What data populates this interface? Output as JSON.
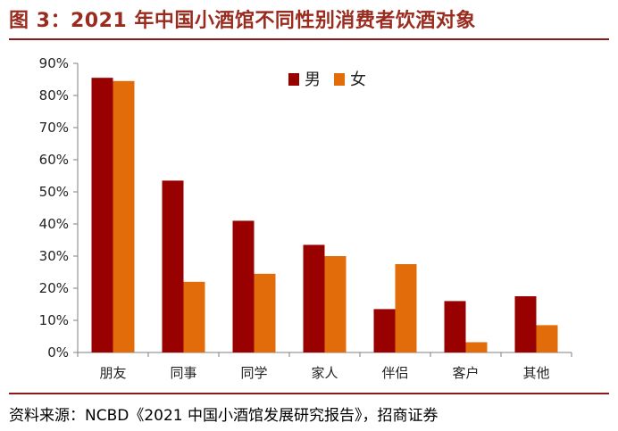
{
  "figure": {
    "title": "图 3：2021 年中国小酒馆不同性别消费者饮酒对象",
    "source": "资料来源：NCBD《2021 中国小酒馆发展研究报告》，招商证券"
  },
  "chart_data": {
    "type": "bar",
    "title": "2021 年中国小酒馆不同性别消费者饮酒对象",
    "xlabel": "",
    "ylabel": "",
    "categories": [
      "朋友",
      "同事",
      "同学",
      "家人",
      "伴侣",
      "客户",
      "其他"
    ],
    "series": [
      {
        "name": "男",
        "color": "#990000",
        "values": [
          85.5,
          53.5,
          41,
          33.5,
          13.5,
          16,
          17.5
        ]
      },
      {
        "name": "女",
        "color": "#e36c0a",
        "values": [
          84.5,
          22,
          24.5,
          30,
          27.5,
          3.2,
          8.5
        ]
      }
    ],
    "ylim": [
      0,
      90
    ],
    "yticks": [
      0,
      10,
      20,
      30,
      40,
      50,
      60,
      70,
      80,
      90
    ],
    "ytick_labels": [
      "0%",
      "10%",
      "20%",
      "30%",
      "40%",
      "50%",
      "60%",
      "70%",
      "80%",
      "90%"
    ],
    "grid": false,
    "legend_position": "top-center"
  }
}
